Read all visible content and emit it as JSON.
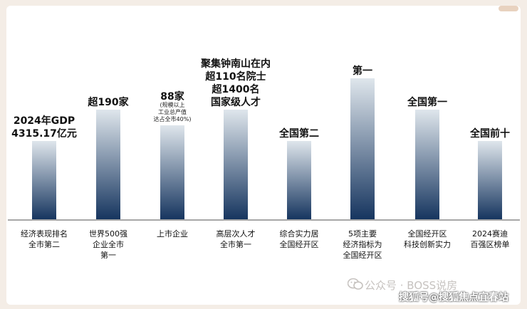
{
  "chart_data": {
    "type": "bar",
    "categories": [
      [
        "经济表现排名",
        "全市第二"
      ],
      [
        "世界500强",
        "企业全市",
        "第一"
      ],
      [
        "上市企业"
      ],
      [
        "高层次人才",
        "全市第一"
      ],
      [
        "综合实力居",
        "全国经开区"
      ],
      [
        "5项主要",
        "经济指标为",
        "全国经开区"
      ],
      [
        "全国经开区",
        "科技创新实力"
      ],
      [
        "2024赛迪",
        "百强区榜单"
      ]
    ],
    "labels": [
      [
        "2024年GDP",
        "4315.17亿元"
      ],
      [
        "超190家"
      ],
      [
        "88家"
      ],
      [
        "聚集钟南山在内",
        "超110名院士",
        "超1400名",
        "国家级人才"
      ],
      [
        "全国第二"
      ],
      [
        "第一"
      ],
      [
        "全国第一"
      ],
      [
        "全国前十"
      ]
    ],
    "notes": [
      [],
      [],
      [
        "(规模以上",
        "工业总产值",
        "达占全市40%)"
      ],
      [],
      [],
      [],
      [],
      []
    ],
    "values": [
      100,
      140,
      120,
      140,
      100,
      180,
      140,
      100
    ],
    "ylim": [
      0,
      200
    ],
    "colors": {
      "top": "#dfe6ec",
      "bottom": "#16355f",
      "axis": "#8a8a8a"
    }
  },
  "watermark": {
    "text": "公众号 · BOSS说房",
    "icon": "wechat-icon"
  },
  "footer": {
    "text": "搜狐号@搜狐焦点宜春站"
  }
}
